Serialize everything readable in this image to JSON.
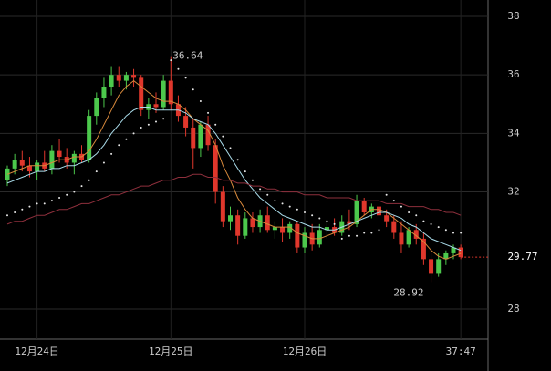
{
  "chart_data": {
    "type": "candlestick",
    "categories": [
      null,
      null,
      null,
      null,
      "12月24日",
      null,
      null,
      null,
      null,
      null,
      null,
      null,
      null,
      null,
      null,
      null,
      null,
      null,
      null,
      null,
      null,
      null,
      "12月25日",
      null,
      null,
      null,
      null,
      null,
      null,
      null,
      null,
      null,
      null,
      null,
      null,
      null,
      null,
      null,
      null,
      null,
      "12月26日",
      null,
      null,
      null,
      null,
      null,
      null,
      null,
      null,
      null,
      null,
      null,
      null,
      null,
      null,
      null,
      null,
      null,
      null,
      null,
      null,
      "37:47"
    ],
    "open": [
      32.4,
      32.8,
      33.1,
      32.9,
      32.7,
      33.0,
      32.8,
      33.4,
      33.2,
      33.0,
      33.3,
      33.1,
      34.6,
      35.2,
      35.6,
      36.0,
      35.8,
      36.0,
      35.9,
      34.8,
      35.0,
      34.9,
      35.8,
      35.0,
      34.6,
      34.2,
      33.5,
      34.3,
      33.6,
      32.0,
      31.0,
      31.2,
      30.5,
      31.1,
      30.8,
      31.2,
      30.7,
      30.8,
      30.6,
      30.9,
      30.1,
      30.6,
      30.2,
      30.7,
      30.8,
      30.6,
      31.0,
      30.9,
      31.7,
      31.3,
      31.5,
      31.2,
      31.0,
      30.6,
      30.2,
      30.7,
      30.4,
      29.7,
      29.2,
      29.7,
      29.9,
      30.1
    ],
    "high": [
      32.9,
      33.3,
      33.4,
      33.2,
      33.1,
      33.4,
      33.6,
      33.8,
      33.5,
      33.4,
      33.6,
      34.8,
      35.4,
      35.9,
      36.3,
      36.3,
      36.1,
      36.2,
      36.0,
      35.2,
      35.4,
      36.0,
      36.64,
      35.3,
      34.9,
      34.5,
      34.4,
      34.6,
      33.8,
      32.2,
      31.5,
      31.4,
      31.3,
      31.3,
      31.4,
      31.5,
      31.0,
      31.1,
      31.0,
      31.0,
      30.8,
      30.9,
      30.9,
      31.0,
      31.1,
      31.2,
      31.4,
      31.9,
      31.8,
      31.6,
      31.6,
      31.4,
      31.2,
      31.0,
      30.8,
      30.9,
      30.6,
      29.9,
      29.9,
      30.0,
      30.2,
      30.2
    ],
    "low": [
      32.2,
      32.6,
      32.7,
      32.5,
      32.4,
      32.7,
      32.6,
      33.0,
      32.8,
      32.6,
      33.0,
      33.0,
      34.3,
      34.9,
      35.3,
      35.6,
      35.5,
      35.6,
      34.6,
      34.5,
      34.7,
      34.8,
      34.8,
      34.4,
      33.9,
      32.8,
      33.2,
      33.4,
      31.6,
      30.8,
      30.7,
      30.2,
      30.4,
      30.6,
      30.6,
      30.6,
      30.4,
      30.3,
      30.4,
      29.9,
      29.9,
      30.0,
      30.1,
      30.4,
      30.5,
      30.5,
      30.7,
      30.8,
      31.2,
      31.1,
      31.1,
      30.8,
      30.4,
      29.9,
      30.1,
      30.2,
      29.5,
      28.92,
      29.1,
      29.5,
      29.7,
      29.7
    ],
    "close": [
      32.8,
      33.1,
      32.9,
      32.7,
      33.0,
      32.8,
      33.4,
      33.2,
      33.0,
      33.3,
      33.1,
      34.6,
      35.2,
      35.6,
      36.0,
      35.8,
      36.0,
      35.9,
      34.8,
      35.0,
      34.9,
      35.8,
      35.0,
      34.6,
      34.2,
      33.5,
      34.3,
      33.6,
      32.0,
      31.0,
      31.2,
      30.5,
      31.1,
      30.8,
      31.2,
      30.7,
      30.8,
      30.6,
      30.9,
      30.1,
      30.6,
      30.2,
      30.7,
      30.8,
      30.6,
      31.0,
      30.9,
      31.7,
      31.3,
      31.5,
      31.2,
      31.0,
      30.6,
      30.2,
      30.7,
      30.4,
      29.7,
      29.2,
      29.7,
      29.9,
      30.1,
      29.77
    ],
    "up_color": "#4cc84c",
    "down_color": "#e0372c",
    "lines": [
      {
        "color": "#d98a3c",
        "values": [
          32.6,
          32.7,
          32.8,
          32.9,
          32.9,
          32.9,
          33.0,
          33.1,
          33.1,
          33.2,
          33.2,
          33.4,
          33.8,
          34.3,
          34.8,
          35.3,
          35.6,
          35.8,
          35.6,
          35.4,
          35.2,
          35.1,
          35.1,
          35.0,
          34.8,
          34.5,
          34.3,
          34.1,
          33.6,
          32.9,
          32.4,
          31.8,
          31.4,
          31.1,
          31.0,
          30.9,
          30.8,
          30.8,
          30.8,
          30.6,
          30.5,
          30.4,
          30.4,
          30.5,
          30.6,
          30.7,
          30.8,
          31.0,
          31.2,
          31.4,
          31.4,
          31.3,
          31.1,
          30.9,
          30.7,
          30.5,
          30.3,
          30.0,
          29.8,
          29.7,
          29.8,
          29.9
        ]
      },
      {
        "color": "#a9dbe9",
        "values": [
          32.3,
          32.4,
          32.5,
          32.6,
          32.7,
          32.7,
          32.8,
          32.8,
          32.9,
          32.9,
          33.0,
          33.1,
          33.3,
          33.6,
          34.0,
          34.3,
          34.6,
          34.8,
          34.9,
          34.9,
          34.8,
          34.8,
          34.8,
          34.8,
          34.7,
          34.5,
          34.4,
          34.3,
          34.0,
          33.6,
          33.2,
          32.8,
          32.4,
          32.1,
          31.8,
          31.6,
          31.4,
          31.2,
          31.1,
          31.0,
          30.9,
          30.8,
          30.8,
          30.7,
          30.7,
          30.8,
          30.9,
          31.0,
          31.1,
          31.2,
          31.3,
          31.3,
          31.2,
          31.1,
          30.9,
          30.8,
          30.6,
          30.4,
          30.3,
          30.2,
          30.1,
          30.0
        ]
      },
      {
        "color": "#8e2f3c",
        "values": [
          30.9,
          31.0,
          31.0,
          31.1,
          31.2,
          31.2,
          31.3,
          31.4,
          31.4,
          31.5,
          31.6,
          31.6,
          31.7,
          31.8,
          31.9,
          31.9,
          32.0,
          32.1,
          32.2,
          32.2,
          32.3,
          32.4,
          32.4,
          32.5,
          32.5,
          32.6,
          32.6,
          32.5,
          32.5,
          32.4,
          32.4,
          32.3,
          32.3,
          32.2,
          32.2,
          32.1,
          32.1,
          32.0,
          32.0,
          32.0,
          31.9,
          31.9,
          31.9,
          31.8,
          31.8,
          31.8,
          31.8,
          31.7,
          31.7,
          31.7,
          31.7,
          31.6,
          31.6,
          31.6,
          31.5,
          31.5,
          31.5,
          31.4,
          31.4,
          31.3,
          31.3,
          31.2
        ]
      }
    ],
    "dots": {
      "color": "#e8e8e8",
      "values": [
        31.2,
        31.3,
        31.4,
        31.5,
        31.6,
        31.6,
        31.7,
        31.8,
        31.9,
        32.0,
        32.2,
        32.4,
        32.7,
        33.0,
        33.3,
        33.6,
        33.8,
        34.0,
        34.2,
        34.3,
        34.4,
        34.5,
        36.5,
        36.2,
        35.9,
        35.5,
        35.1,
        34.7,
        34.3,
        33.9,
        33.5,
        33.1,
        32.7,
        32.4,
        32.1,
        31.9,
        31.7,
        31.6,
        31.5,
        31.4,
        31.3,
        31.2,
        31.1,
        31.0,
        30.9,
        30.4,
        30.5,
        30.5,
        30.6,
        30.6,
        30.7,
        31.9,
        31.7,
        31.5,
        31.3,
        31.2,
        31.0,
        30.9,
        30.8,
        30.7,
        30.6,
        30.6
      ]
    },
    "max_label": 36.64,
    "min_label": 28.92,
    "last_price": 29.77,
    "last_color": "#e0372c",
    "ylim": [
      26.97,
      38.56
    ],
    "yticks": [
      28,
      32,
      34,
      36,
      38
    ],
    "grid": true
  }
}
